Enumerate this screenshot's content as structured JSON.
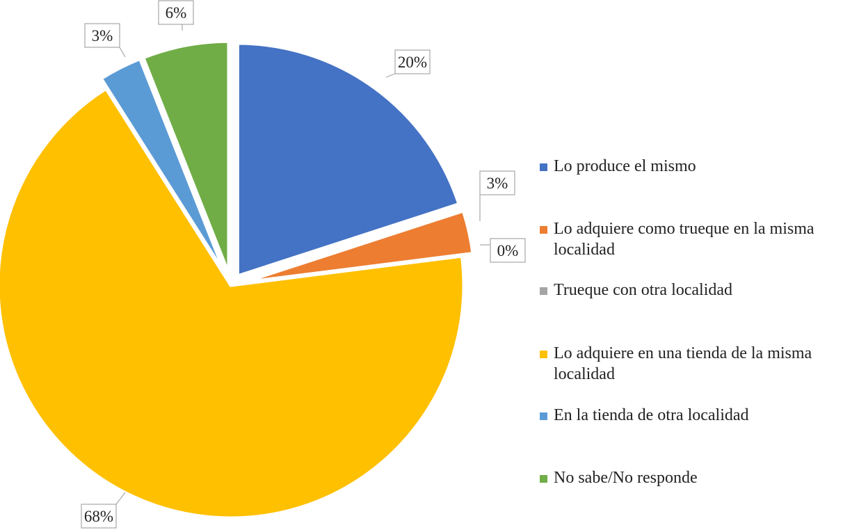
{
  "chart_data": {
    "type": "pie",
    "title": "",
    "legend_position": "right",
    "slices": [
      {
        "label": "Lo produce el mismo",
        "value": 20,
        "display": "20%",
        "color": "#4472c4"
      },
      {
        "label": "Lo adquiere como trueque en la misma localidad",
        "value": 3,
        "display": "3%",
        "color": "#ed7d31"
      },
      {
        "label": "Trueque con otra localidad",
        "value": 0,
        "display": "0%",
        "color": "#a5a5a5"
      },
      {
        "label": "Lo adquiere en una tienda de la misma localidad",
        "value": 68,
        "display": "68%",
        "color": "#ffc000"
      },
      {
        "label": "En la tienda de otra localidad",
        "value": 3,
        "display": "3%",
        "color": "#5b9bd5"
      },
      {
        "label": "No sabe/No responde",
        "value": 6,
        "display": "6%",
        "color": "#70ad47"
      }
    ]
  }
}
